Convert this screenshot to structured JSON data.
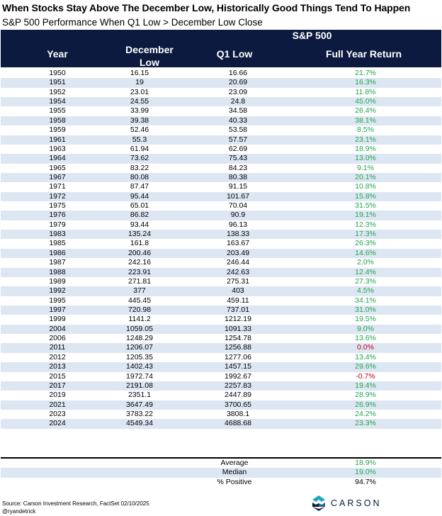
{
  "title": "When Stocks Stay Above The December Low, Historically Good Things Tend To Happen",
  "subtitle": "S&P 500 Performance When Q1 Low > December Low Close",
  "header": {
    "group": "S&P 500",
    "year": "Year",
    "dec_low_line1": "December",
    "dec_low_line2": "Low",
    "q1_low": "Q1 Low",
    "full_year_return": "Full Year Return"
  },
  "rows": [
    {
      "year": "1950",
      "dec": "16.15",
      "q1": "16.66",
      "ret": "21.7%"
    },
    {
      "year": "1951",
      "dec": "19",
      "q1": "20.69",
      "ret": "16.3%"
    },
    {
      "year": "1952",
      "dec": "23.01",
      "q1": "23.09",
      "ret": "11.8%"
    },
    {
      "year": "1954",
      "dec": "24.55",
      "q1": "24.8",
      "ret": "45.0%"
    },
    {
      "year": "1955",
      "dec": "33.99",
      "q1": "34.58",
      "ret": "26.4%"
    },
    {
      "year": "1958",
      "dec": "39.38",
      "q1": "40.33",
      "ret": "38.1%"
    },
    {
      "year": "1959",
      "dec": "52.46",
      "q1": "53.58",
      "ret": "8.5%"
    },
    {
      "year": "1961",
      "dec": "55.3",
      "q1": "57.57",
      "ret": "23.1%"
    },
    {
      "year": "1963",
      "dec": "61.94",
      "q1": "62.69",
      "ret": "18.9%"
    },
    {
      "year": "1964",
      "dec": "73.62",
      "q1": "75.43",
      "ret": "13.0%"
    },
    {
      "year": "1965",
      "dec": "83.22",
      "q1": "84.23",
      "ret": "9.1%"
    },
    {
      "year": "1967",
      "dec": "80.08",
      "q1": "80.38",
      "ret": "20.1%"
    },
    {
      "year": "1971",
      "dec": "87.47",
      "q1": "91.15",
      "ret": "10.8%"
    },
    {
      "year": "1972",
      "dec": "95.44",
      "q1": "101.67",
      "ret": "15.8%"
    },
    {
      "year": "1975",
      "dec": "65.01",
      "q1": "70.04",
      "ret": "31.5%"
    },
    {
      "year": "1976",
      "dec": "86.82",
      "q1": "90.9",
      "ret": "19.1%"
    },
    {
      "year": "1979",
      "dec": "93.44",
      "q1": "96.13",
      "ret": "12.3%"
    },
    {
      "year": "1983",
      "dec": "135.24",
      "q1": "138.33",
      "ret": "17.3%"
    },
    {
      "year": "1985",
      "dec": "161.8",
      "q1": "163.67",
      "ret": "26.3%"
    },
    {
      "year": "1986",
      "dec": "200.46",
      "q1": "203.49",
      "ret": "14.6%"
    },
    {
      "year": "1987",
      "dec": "242.16",
      "q1": "246.44",
      "ret": "2.0%"
    },
    {
      "year": "1988",
      "dec": "223.91",
      "q1": "242.63",
      "ret": "12.4%"
    },
    {
      "year": "1989",
      "dec": "271.81",
      "q1": "275.31",
      "ret": "27.3%"
    },
    {
      "year": "1992",
      "dec": "377",
      "q1": "403",
      "ret": "4.5%"
    },
    {
      "year": "1995",
      "dec": "445.45",
      "q1": "459.11",
      "ret": "34.1%"
    },
    {
      "year": "1997",
      "dec": "720.98",
      "q1": "737.01",
      "ret": "31.0%"
    },
    {
      "year": "1999",
      "dec": "1141.2",
      "q1": "1212.19",
      "ret": "19.5%"
    },
    {
      "year": "2004",
      "dec": "1059.05",
      "q1": "1091.33",
      "ret": "9.0%"
    },
    {
      "year": "2006",
      "dec": "1248.29",
      "q1": "1254.78",
      "ret": "13.6%"
    },
    {
      "year": "2011",
      "dec": "1206.07",
      "q1": "1256.88",
      "ret": "0.0%"
    },
    {
      "year": "2012",
      "dec": "1205.35",
      "q1": "1277.06",
      "ret": "13.4%"
    },
    {
      "year": "2013",
      "dec": "1402.43",
      "q1": "1457.15",
      "ret": "29.6%"
    },
    {
      "year": "2015",
      "dec": "1972.74",
      "q1": "1992.67",
      "ret": "-0.7%"
    },
    {
      "year": "2017",
      "dec": "2191.08",
      "q1": "2257.83",
      "ret": "19.4%"
    },
    {
      "year": "2019",
      "dec": "2351.1",
      "q1": "2447.89",
      "ret": "28.9%"
    },
    {
      "year": "2021",
      "dec": "3647.49",
      "q1": "3700.65",
      "ret": "26.9%"
    },
    {
      "year": "2023",
      "dec": "3783.22",
      "q1": "3808.1",
      "ret": "24.2%"
    },
    {
      "year": "2024",
      "dec": "4549.34",
      "q1": "4688.68",
      "ret": "23.3%"
    }
  ],
  "summary": [
    {
      "label": "Average",
      "value": "18.9%"
    },
    {
      "label": "Median",
      "value": "19.0%"
    },
    {
      "label": "% Positive",
      "value": "94.7%"
    }
  ],
  "source_line1": "Source: Carson Investment Research, FactSet 02/10/2025",
  "source_line2": "@ryandetrick",
  "logo_text": "CARSON",
  "colors": {
    "header_bg": "#0b1a3e",
    "band": "#dde6f3",
    "positive": "#22a64a",
    "negative": "#c0001a"
  }
}
